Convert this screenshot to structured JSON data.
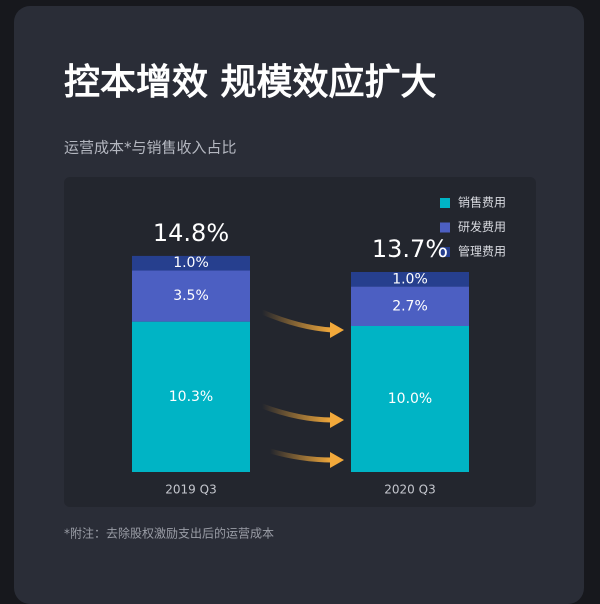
{
  "chart_data": {
    "type": "stacked-bar",
    "title": "控本增效 规模效应扩大",
    "subtitle": "运营成本*与销售收入占比",
    "note": "*附注：去除股权激励支出后的运营成本",
    "categories": [
      "2019 Q3",
      "2020 Q3"
    ],
    "series": [
      {
        "name": "销售费用",
        "color": "#00b4c5",
        "values": [
          10.3,
          10.0
        ],
        "value_labels": [
          "10.3%",
          "10.0%"
        ]
      },
      {
        "name": "研发费用",
        "color": "#4c5fc2",
        "values": [
          3.5,
          2.7
        ],
        "value_labels": [
          "3.5%",
          "2.7%"
        ]
      },
      {
        "name": "管理费用",
        "color": "#263f8e",
        "values": [
          1.0,
          1.0
        ],
        "value_labels": [
          "1.0%",
          "1.0%"
        ]
      }
    ],
    "totals": {
      "values": [
        14.8,
        13.7
      ],
      "value_labels": [
        "14.8%",
        "13.7%"
      ]
    },
    "legend": "top-right"
  }
}
